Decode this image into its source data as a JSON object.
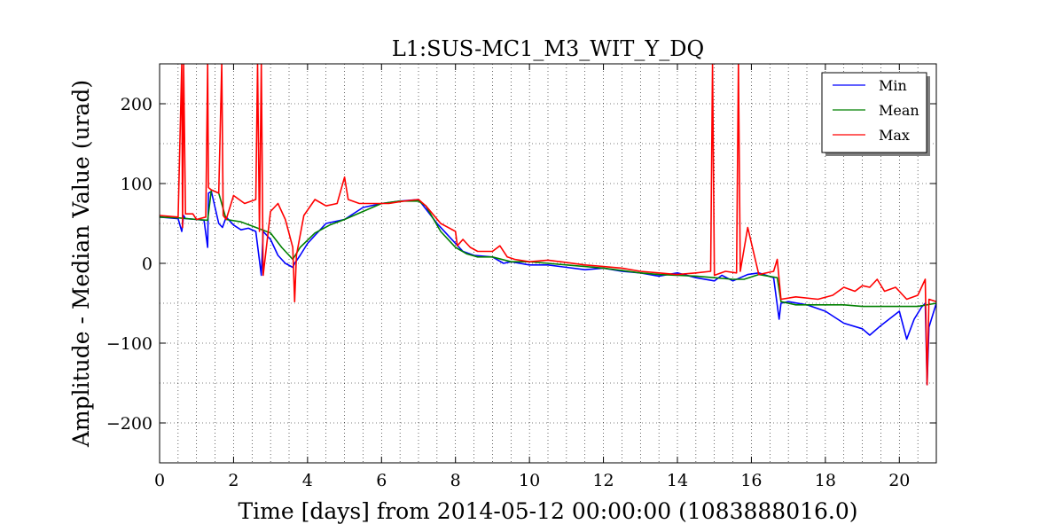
{
  "chart_data": {
    "type": "line",
    "title": "L1:SUS-MC1_M3_WIT_Y_DQ",
    "xlabel": "Time [days] from 2014-05-12 00:00:00 (1083888016.0)",
    "ylabel": "Amplitude - Median Value (urad)",
    "xlim": [
      0,
      21
    ],
    "ylim": [
      -250,
      250
    ],
    "xticks": [
      0,
      2,
      4,
      6,
      8,
      10,
      12,
      14,
      16,
      18,
      20
    ],
    "yticks": [
      -200,
      -100,
      0,
      100,
      200
    ],
    "ytick_labels": [
      "−200",
      "−100",
      "0",
      "100",
      "200"
    ],
    "grid": true,
    "legend_position": "top-right",
    "series": [
      {
        "name": "Min",
        "color": "#0000ff",
        "x": [
          0,
          0.5,
          0.6,
          0.65,
          0.7,
          1.0,
          1.2,
          1.3,
          1.32,
          1.4,
          1.6,
          1.7,
          1.8,
          2.0,
          2.2,
          2.4,
          2.6,
          2.75,
          2.8,
          3.0,
          3.2,
          3.4,
          3.6,
          3.65,
          3.8,
          4.0,
          4.2,
          4.5,
          5.0,
          5.5,
          6.0,
          6.5,
          7.0,
          7.5,
          8.0,
          8.2,
          8.5,
          9.0,
          9.3,
          9.5,
          10.0,
          10.5,
          11.0,
          11.5,
          12.0,
          12.5,
          13.0,
          13.5,
          14.0,
          14.5,
          15.0,
          15.2,
          15.5,
          15.7,
          15.9,
          16.2,
          16.6,
          16.75,
          16.8,
          17.0,
          17.5,
          18.0,
          18.5,
          19.0,
          19.2,
          19.5,
          20.0,
          20.2,
          20.4,
          20.6,
          20.7,
          20.75,
          20.8,
          21.0
        ],
        "values": [
          58,
          56,
          40,
          60,
          56,
          55,
          54,
          20,
          88,
          90,
          50,
          45,
          58,
          48,
          42,
          44,
          40,
          -15,
          40,
          30,
          10,
          0,
          -5,
          0,
          10,
          25,
          35,
          50,
          55,
          70,
          75,
          78,
          80,
          50,
          25,
          15,
          10,
          8,
          0,
          2,
          -2,
          -2,
          -5,
          -8,
          -6,
          -10,
          -12,
          -16,
          -12,
          -18,
          -22,
          -15,
          -22,
          -18,
          -14,
          -12,
          -18,
          -70,
          -50,
          -48,
          -52,
          -60,
          -75,
          -82,
          -90,
          -78,
          -60,
          -95,
          -70,
          -55,
          -50,
          -152,
          -80,
          -50
        ]
      },
      {
        "name": "Mean",
        "color": "#008000",
        "x": [
          0,
          0.5,
          1.0,
          1.3,
          1.4,
          1.6,
          1.8,
          2.2,
          2.6,
          3.0,
          3.3,
          3.6,
          3.8,
          4.2,
          4.6,
          5.0,
          5.5,
          6.0,
          6.5,
          7.0,
          7.2,
          7.6,
          8.0,
          8.3,
          8.6,
          9.0,
          9.5,
          10.0,
          10.5,
          11.0,
          11.5,
          12.0,
          12.5,
          13.0,
          13.5,
          14.0,
          14.5,
          15.0,
          15.5,
          15.8,
          16.2,
          16.7,
          16.8,
          17.2,
          17.8,
          18.5,
          19.0,
          19.5,
          20.0,
          20.5,
          21.0
        ],
        "values": [
          58,
          57,
          55,
          54,
          92,
          88,
          55,
          52,
          45,
          38,
          20,
          5,
          20,
          38,
          48,
          55,
          65,
          75,
          78,
          78,
          72,
          40,
          20,
          12,
          8,
          8,
          2,
          2,
          0,
          -2,
          -4,
          -6,
          -9,
          -12,
          -14,
          -15,
          -16,
          -18,
          -20,
          -20,
          -14,
          -18,
          -48,
          -52,
          -52,
          -52,
          -54,
          -54,
          -54,
          -54,
          -50
        ]
      },
      {
        "name": "Max",
        "color": "#ff0000",
        "x": [
          0,
          0.5,
          0.6,
          0.62,
          0.65,
          0.7,
          0.9,
          1.0,
          1.25,
          1.3,
          1.32,
          1.4,
          1.5,
          1.6,
          1.68,
          1.72,
          1.8,
          2.0,
          2.3,
          2.6,
          2.65,
          2.7,
          2.75,
          2.8,
          3.0,
          3.2,
          3.4,
          3.6,
          3.65,
          3.7,
          3.9,
          4.2,
          4.5,
          4.8,
          5.0,
          5.1,
          5.4,
          5.8,
          6.2,
          6.6,
          7.0,
          7.2,
          7.6,
          8.0,
          8.05,
          8.2,
          8.4,
          8.6,
          9.0,
          9.2,
          9.4,
          9.6,
          10.0,
          10.5,
          11.0,
          11.5,
          12.0,
          12.5,
          13.0,
          13.5,
          14.0,
          14.5,
          14.9,
          14.95,
          15.0,
          15.3,
          15.6,
          15.65,
          15.7,
          15.9,
          16.2,
          16.6,
          16.7,
          16.8,
          17.2,
          17.8,
          18.2,
          18.5,
          18.8,
          19.0,
          19.2,
          19.4,
          19.6,
          19.9,
          20.2,
          20.5,
          20.7,
          20.75,
          20.8,
          21.0
        ],
        "values": [
          60,
          58,
          250,
          45,
          250,
          62,
          62,
          55,
          58,
          250,
          95,
          92,
          90,
          88,
          250,
          60,
          55,
          85,
          75,
          80,
          250,
          40,
          250,
          -15,
          65,
          75,
          55,
          20,
          -48,
          10,
          60,
          80,
          72,
          75,
          108,
          80,
          75,
          75,
          75,
          78,
          80,
          72,
          50,
          40,
          22,
          30,
          20,
          15,
          15,
          22,
          8,
          5,
          2,
          4,
          1,
          -2,
          -4,
          -6,
          -10,
          -12,
          -14,
          -12,
          -10,
          250,
          -15,
          -10,
          -12,
          250,
          -10,
          45,
          -14,
          -10,
          5,
          -45,
          -42,
          -45,
          -40,
          -30,
          -35,
          -28,
          -30,
          -20,
          -35,
          -30,
          -45,
          -40,
          -20,
          -152,
          -45,
          -48
        ]
      }
    ]
  }
}
